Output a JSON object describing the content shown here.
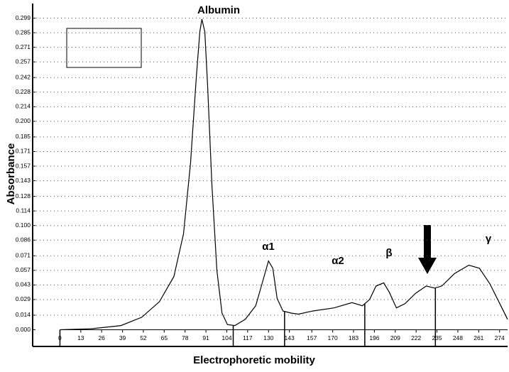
{
  "chart_data": {
    "type": "line",
    "x_label": "Electrophoretic mobility",
    "y_label": "Absorbance",
    "color": "#000000",
    "x": [
      0,
      20,
      38,
      51,
      62,
      71,
      77,
      81.4,
      85,
      87.2,
      88.5,
      90.3,
      92,
      94.7,
      97.8,
      101,
      104.4,
      109,
      115.5,
      122,
      126.5,
      130,
      132.7,
      135.4,
      139,
      144,
      148.7,
      157.5,
      170.8,
      182,
      188.5,
      193,
      197,
      201.8,
      205.3,
      209.7,
      215,
      221.7,
      228.3,
      233.6,
      238,
      246,
      254.9,
      261.5,
      268,
      274.8,
      279
    ],
    "values": [
      0,
      0.001,
      0.004,
      0.012,
      0.027,
      0.051,
      0.092,
      0.16,
      0.242,
      0.286,
      0.298,
      0.286,
      0.235,
      0.139,
      0.057,
      0.016,
      0.005,
      0.004,
      0.01,
      0.023,
      0.047,
      0.066,
      0.059,
      0.03,
      0.018,
      0.016,
      0.015,
      0.018,
      0.021,
      0.026,
      0.023,
      0.029,
      0.042,
      0.045,
      0.036,
      0.021,
      0.025,
      0.035,
      0.042,
      0.04,
      0.042,
      0.054,
      0.062,
      0.059,
      0.044,
      0.023,
      0.01
    ],
    "fraction_boundaries": [
      108,
      140,
      190,
      234
    ],
    "annotations": [
      "Albumin",
      "α1",
      "α2",
      "β",
      "γ"
    ],
    "xlim": [
      -17,
      279
    ],
    "ylim": [
      -0.016,
      0.313
    ],
    "xticks": [
      0,
      13,
      26,
      39,
      52,
      65,
      78,
      91,
      104,
      117,
      130,
      143,
      157,
      170,
      183,
      196,
      209,
      222,
      235,
      248,
      261,
      274
    ],
    "yticks": [
      {
        "value": 0,
        "label": "0.000"
      },
      0.014,
      0.029,
      0.043,
      0.057,
      0.071,
      0.086,
      {
        "value": 0.1,
        "label": "0.100"
      },
      0.114,
      0.128,
      0.143,
      0.157,
      0.171,
      0.185,
      {
        "value": 0.2,
        "label": "0.200"
      },
      0.214,
      0.228,
      0.242,
      0.257,
      0.271,
      0.285,
      0.299
    ],
    "grid": true
  }
}
